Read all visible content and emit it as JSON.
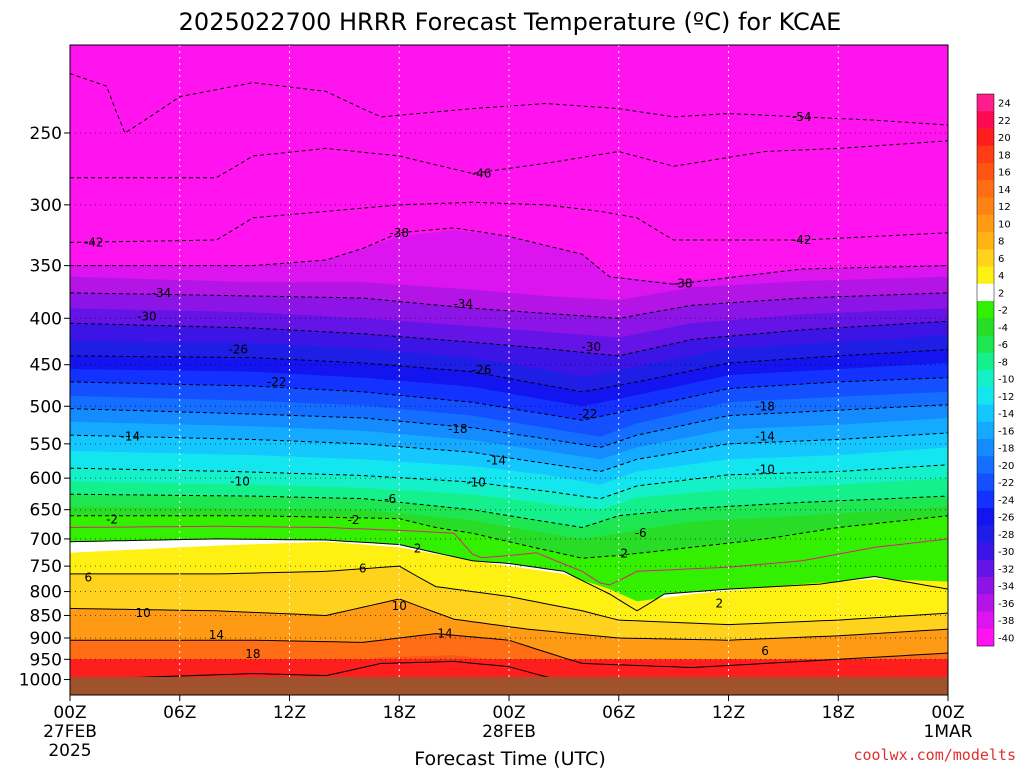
{
  "chart_data": {
    "type": "heatmap",
    "title": "2025022700 HRRR Forecast Temperature (ºC) for KCAE",
    "xlabel": "Forecast Time (UTC)",
    "credit": "coolwx.com/modelts",
    "x_ticks": [
      {
        "hour": 0,
        "label": "00Z",
        "sub1": "27FEB",
        "sub2": "2025"
      },
      {
        "hour": 6,
        "label": "06Z",
        "sub1": "",
        "sub2": ""
      },
      {
        "hour": 12,
        "label": "12Z",
        "sub1": "",
        "sub2": ""
      },
      {
        "hour": 18,
        "label": "18Z",
        "sub1": "",
        "sub2": ""
      },
      {
        "hour": 24,
        "label": "00Z",
        "sub1": "28FEB",
        "sub2": ""
      },
      {
        "hour": 30,
        "label": "06Z",
        "sub1": "",
        "sub2": ""
      },
      {
        "hour": 36,
        "label": "12Z",
        "sub1": "",
        "sub2": ""
      },
      {
        "hour": 42,
        "label": "18Z",
        "sub1": "",
        "sub2": ""
      },
      {
        "hour": 48,
        "label": "00Z",
        "sub1": "1MAR",
        "sub2": ""
      }
    ],
    "x_range_hours": [
      0,
      48
    ],
    "y_scale": "log",
    "y_range_hPa": [
      1040,
      200
    ],
    "y_ticks": [
      250,
      300,
      350,
      400,
      450,
      500,
      550,
      600,
      650,
      700,
      750,
      800,
      850,
      900,
      950,
      1000
    ],
    "grid": true,
    "colorbar": {
      "labels": [
        24,
        22,
        20,
        18,
        16,
        14,
        12,
        10,
        8,
        6,
        4,
        2,
        -2,
        -4,
        -6,
        -8,
        -10,
        -12,
        -14,
        -16,
        -18,
        -20,
        -22,
        -24,
        -26,
        -28,
        -30,
        -32,
        -34,
        -36,
        -38,
        -40
      ],
      "colors": [
        "#ff1e8c",
        "#ff0a50",
        "#ff1e1e",
        "#ff3c14",
        "#ff5514",
        "#ff6e14",
        "#ff8214",
        "#ff9a14",
        "#ffb414",
        "#ffd21e",
        "#fff014",
        "#ffffff",
        "#32f000",
        "#28dc28",
        "#1ee650",
        "#14f08c",
        "#14f0c8",
        "#14e6f0",
        "#14c8ff",
        "#14aaff",
        "#148cff",
        "#146eff",
        "#1450ff",
        "#1432ff",
        "#1414f0",
        "#1e1ee6",
        "#3c14e6",
        "#6414e6",
        "#8c14e6",
        "#b414e6",
        "#dc14f0",
        "#ff14f0"
      ]
    },
    "contour_labels": [
      {
        "value": -54,
        "hour": 40,
        "p": 240
      },
      {
        "value": -46,
        "hour": 22.5,
        "p": 277
      },
      {
        "value": -42,
        "hour": 1.3,
        "p": 330
      },
      {
        "value": -42,
        "hour": 40,
        "p": 328
      },
      {
        "value": -38,
        "hour": 18,
        "p": 322
      },
      {
        "value": -38,
        "hour": 33.5,
        "p": 366
      },
      {
        "value": -34,
        "hour": 5,
        "p": 375
      },
      {
        "value": -34,
        "hour": 21.5,
        "p": 386
      },
      {
        "value": -30,
        "hour": 4.2,
        "p": 398
      },
      {
        "value": -30,
        "hour": 28.5,
        "p": 430
      },
      {
        "value": -26,
        "hour": 9.2,
        "p": 433
      },
      {
        "value": -26,
        "hour": 22.5,
        "p": 456
      },
      {
        "value": -22,
        "hour": 11.3,
        "p": 470
      },
      {
        "value": -22,
        "hour": 28.3,
        "p": 510
      },
      {
        "value": -18,
        "hour": 21.2,
        "p": 530
      },
      {
        "value": -18,
        "hour": 38,
        "p": 500
      },
      {
        "value": -14,
        "hour": 3.3,
        "p": 540
      },
      {
        "value": -14,
        "hour": 23.3,
        "p": 574
      },
      {
        "value": -14,
        "hour": 38,
        "p": 540
      },
      {
        "value": -10,
        "hour": 9.3,
        "p": 605
      },
      {
        "value": -10,
        "hour": 22.2,
        "p": 607
      },
      {
        "value": -10,
        "hour": 38,
        "p": 587
      },
      {
        "value": -6,
        "hour": 17.5,
        "p": 633
      },
      {
        "value": -6,
        "hour": 31.2,
        "p": 690
      },
      {
        "value": -2,
        "hour": 2.3,
        "p": 666
      },
      {
        "value": -2,
        "hour": 15.5,
        "p": 667
      },
      {
        "value": 2,
        "hour": 19,
        "p": 717
      },
      {
        "value": 2,
        "hour": 30.3,
        "p": 726
      },
      {
        "value": 2,
        "hour": 35.5,
        "p": 825
      },
      {
        "value": 6,
        "hour": 1,
        "p": 772
      },
      {
        "value": 6,
        "hour": 16,
        "p": 755
      },
      {
        "value": 6,
        "hour": 38,
        "p": 930
      },
      {
        "value": 10,
        "hour": 4,
        "p": 845
      },
      {
        "value": 10,
        "hour": 18,
        "p": 830
      },
      {
        "value": 14,
        "hour": 8,
        "p": 893
      },
      {
        "value": 14,
        "hour": 20.5,
        "p": 890
      },
      {
        "value": 18,
        "hour": 10,
        "p": 937
      }
    ]
  }
}
